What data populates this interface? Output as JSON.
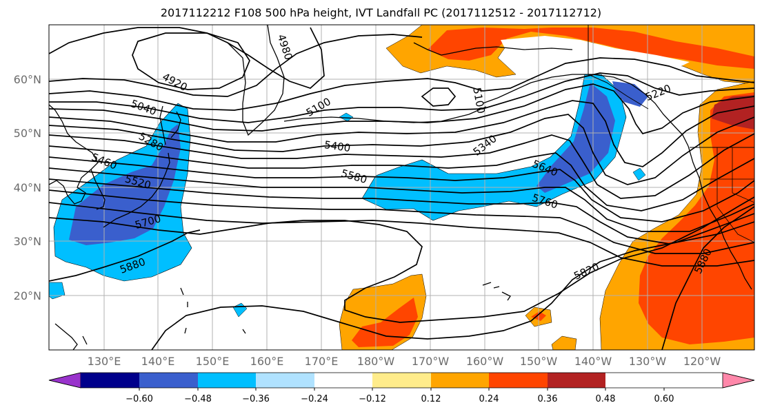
{
  "title": "2017112212 F108 500 hPa height, IVT Landfall PC (2017112512 - 2017112712)",
  "lat_labels": [
    "60°N",
    "50°N",
    "40°N",
    "30°N",
    "20°N"
  ],
  "lon_labels": [
    "130°E",
    "140°E",
    "150°E",
    "160°E",
    "170°E",
    "180°W",
    "170°W",
    "160°W",
    "150°W",
    "140°W",
    "130°W",
    "120°W"
  ],
  "contour_labels": [
    "4920",
    "4980",
    "5100",
    "5040",
    "5280",
    "5400",
    "5340",
    "5220",
    "5460",
    "5520",
    "5580",
    "5640",
    "5700",
    "5760",
    "5880",
    "5820",
    "5880",
    "5100"
  ],
  "colorbar": {
    "labels": [
      "−0.60",
      "−0.48",
      "−0.36",
      "−0.24",
      "−0.12",
      "0.12",
      "0.24",
      "0.36",
      "0.48",
      "0.60"
    ],
    "colors": [
      "#9933cc",
      "#00008b",
      "#3a5fcd",
      "#00bfff",
      "#b0e2ff",
      "#ffffff",
      "#ffec8b",
      "#ffa500",
      "#ff4500",
      "#b22222",
      "#ff88aa"
    ]
  },
  "colors": {
    "strong_negative": "#3a5fcd",
    "negative": "#00bfff",
    "weak_negative": "#b0e2ff",
    "weak_positive": "#ffec8b",
    "positive": "#ffa500",
    "strong_positive": "#ff4500",
    "very_strong_positive": "#b22222"
  }
}
